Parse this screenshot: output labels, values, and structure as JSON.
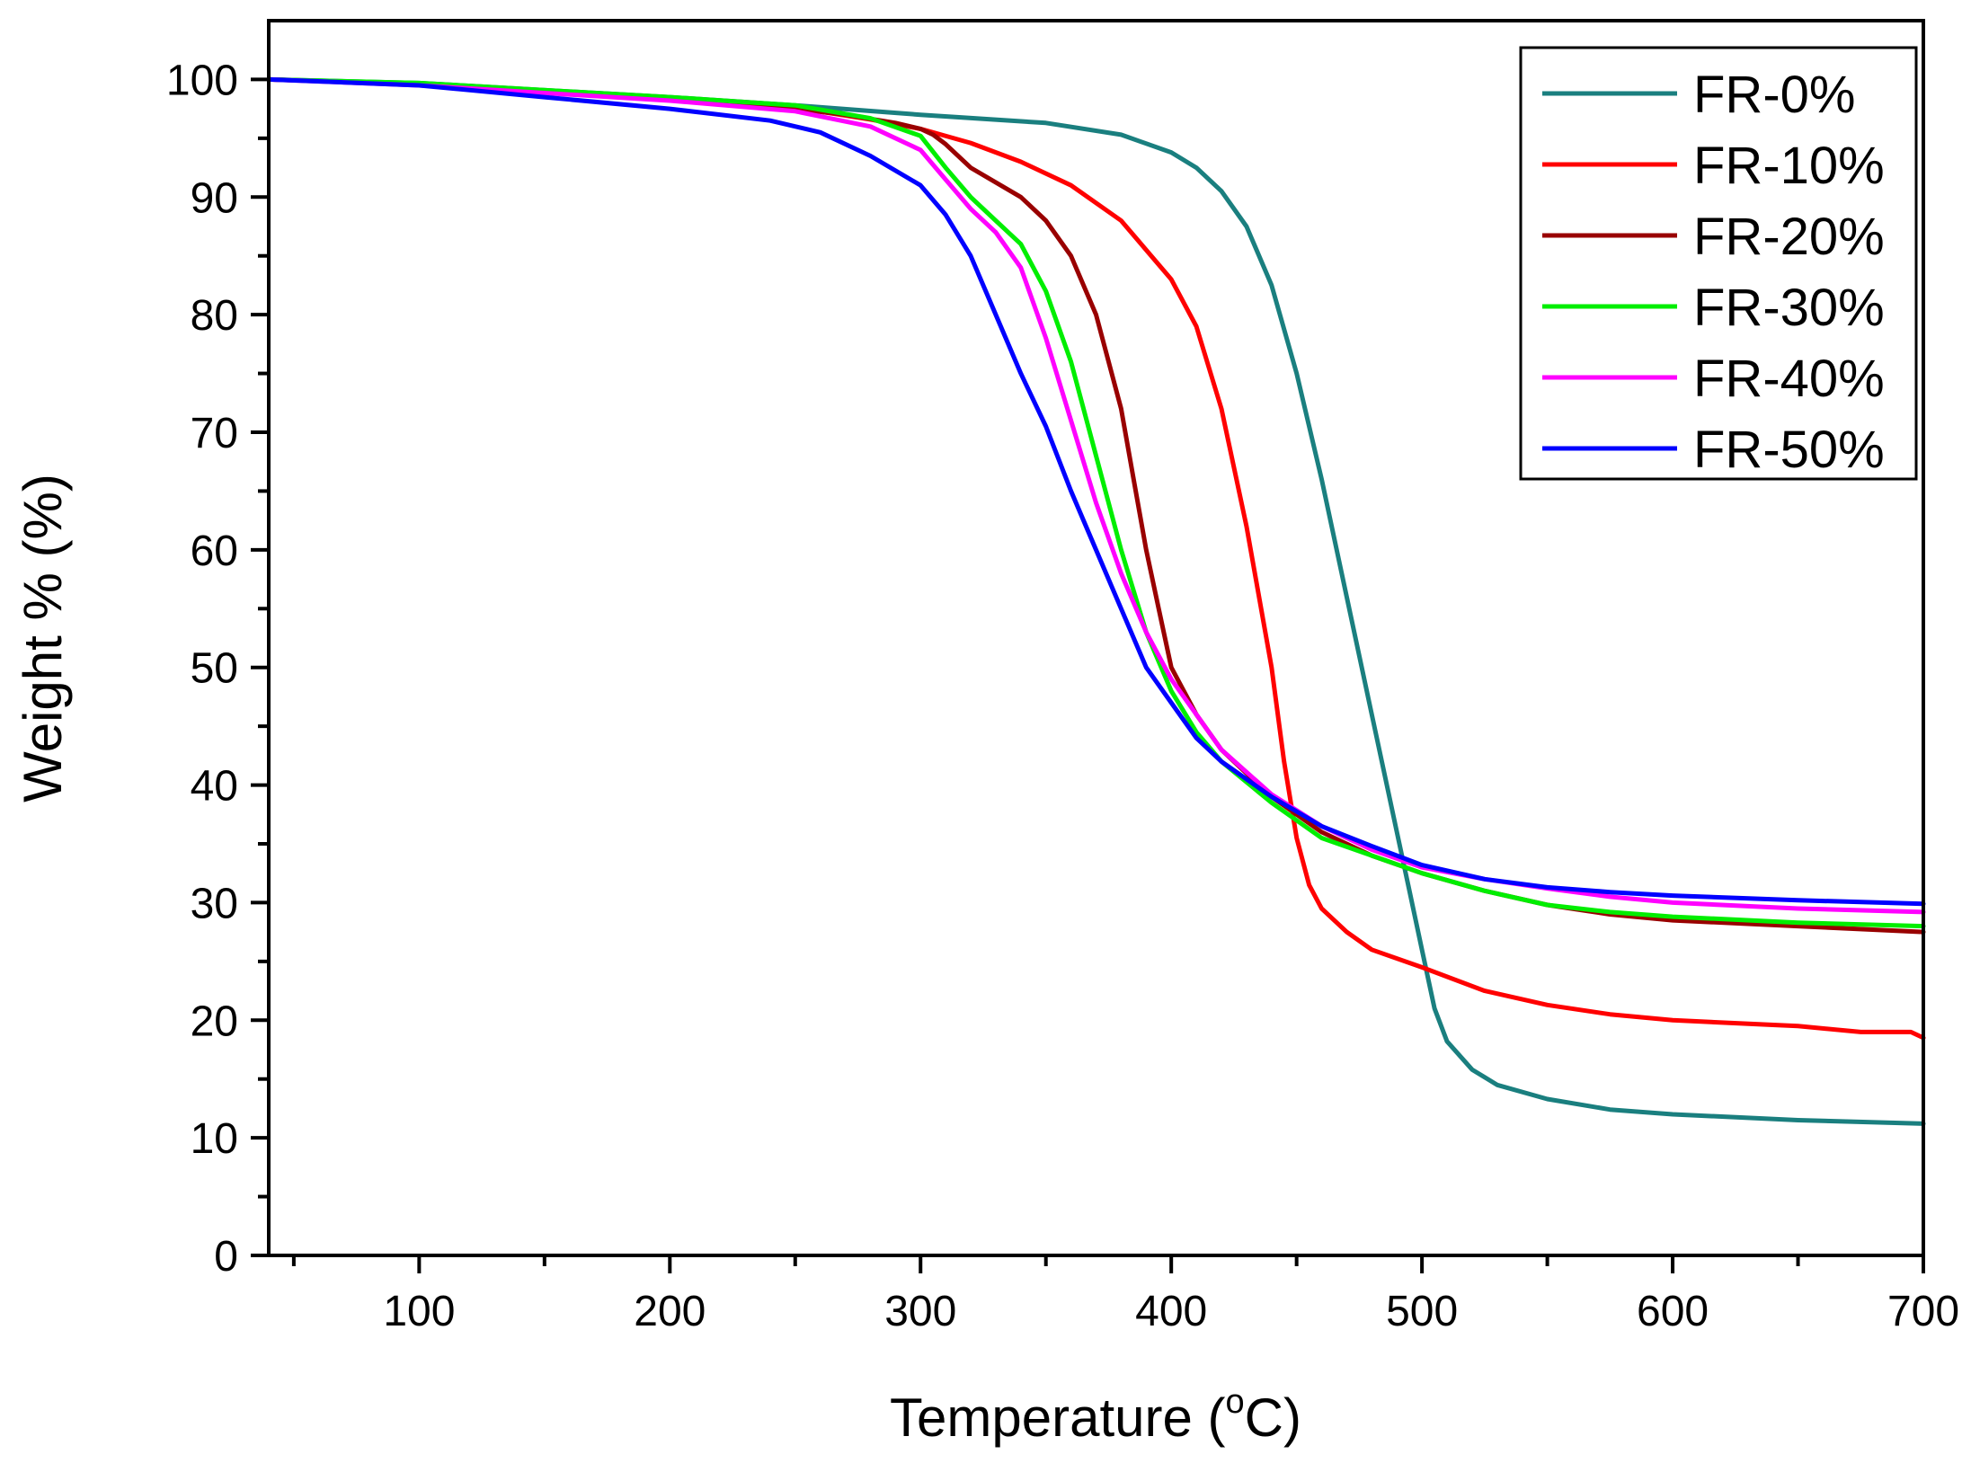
{
  "chart_data": {
    "type": "line",
    "title": "",
    "xlabel": "Temperature (°C)",
    "xlabel_main": "Temperature (",
    "xlabel_sup": "o",
    "xlabel_end": "C)",
    "ylabel": "Weight % (%)",
    "xlim": [
      40,
      700
    ],
    "ylim": [
      0,
      105
    ],
    "x_ticks": [
      100,
      200,
      300,
      400,
      500,
      600,
      700
    ],
    "y_ticks": [
      0,
      10,
      20,
      30,
      40,
      50,
      60,
      70,
      80,
      90,
      100
    ],
    "grid": false,
    "legend_position": "top-right",
    "series": [
      {
        "name": "FR-0%",
        "color": "#1a7f7f",
        "points": [
          [
            40,
            100
          ],
          [
            100,
            99.7
          ],
          [
            200,
            98.5
          ],
          [
            250,
            97.8
          ],
          [
            300,
            97
          ],
          [
            350,
            96.3
          ],
          [
            380,
            95.3
          ],
          [
            400,
            93.8
          ],
          [
            410,
            92.5
          ],
          [
            420,
            90.5
          ],
          [
            430,
            87.5
          ],
          [
            440,
            82.5
          ],
          [
            450,
            75
          ],
          [
            460,
            66
          ],
          [
            470,
            56
          ],
          [
            480,
            46
          ],
          [
            490,
            36
          ],
          [
            495,
            31
          ],
          [
            500,
            26
          ],
          [
            505,
            21
          ],
          [
            510,
            18.2
          ],
          [
            520,
            15.8
          ],
          [
            530,
            14.5
          ],
          [
            550,
            13.3
          ],
          [
            575,
            12.4
          ],
          [
            600,
            12
          ],
          [
            650,
            11.5
          ],
          [
            700,
            11.2
          ]
        ]
      },
      {
        "name": "FR-10%",
        "color": "#ff0000",
        "points": [
          [
            40,
            100
          ],
          [
            100,
            99.6
          ],
          [
            200,
            98.3
          ],
          [
            250,
            97.6
          ],
          [
            280,
            96.6
          ],
          [
            300,
            95.8
          ],
          [
            320,
            94.6
          ],
          [
            340,
            93
          ],
          [
            360,
            91
          ],
          [
            380,
            88
          ],
          [
            400,
            83
          ],
          [
            410,
            79
          ],
          [
            420,
            72
          ],
          [
            430,
            62
          ],
          [
            440,
            50
          ],
          [
            445,
            42
          ],
          [
            450,
            35.5
          ],
          [
            455,
            31.5
          ],
          [
            460,
            29.5
          ],
          [
            470,
            27.5
          ],
          [
            480,
            26
          ],
          [
            500,
            24.5
          ],
          [
            525,
            22.5
          ],
          [
            550,
            21.3
          ],
          [
            575,
            20.5
          ],
          [
            600,
            20
          ],
          [
            650,
            19.5
          ],
          [
            675,
            19
          ],
          [
            695,
            19
          ],
          [
            700,
            18.5
          ]
        ]
      },
      {
        "name": "FR-20%",
        "color": "#990000",
        "points": [
          [
            40,
            100
          ],
          [
            100,
            99.6
          ],
          [
            200,
            98.3
          ],
          [
            250,
            97.5
          ],
          [
            270,
            97
          ],
          [
            290,
            96.3
          ],
          [
            300,
            95.8
          ],
          [
            305,
            95.3
          ],
          [
            310,
            94.5
          ],
          [
            320,
            92.5
          ],
          [
            340,
            90
          ],
          [
            350,
            88
          ],
          [
            360,
            85
          ],
          [
            370,
            80
          ],
          [
            380,
            72
          ],
          [
            385,
            66
          ],
          [
            390,
            60
          ],
          [
            395,
            55
          ],
          [
            400,
            50
          ],
          [
            410,
            46
          ],
          [
            420,
            43
          ],
          [
            440,
            39
          ],
          [
            460,
            36
          ],
          [
            480,
            34
          ],
          [
            500,
            32.5
          ],
          [
            525,
            31
          ],
          [
            550,
            29.8
          ],
          [
            575,
            29
          ],
          [
            600,
            28.5
          ],
          [
            650,
            28
          ],
          [
            700,
            27.5
          ]
        ]
      },
      {
        "name": "FR-30%",
        "color": "#00ee00",
        "points": [
          [
            40,
            100
          ],
          [
            100,
            99.7
          ],
          [
            200,
            98.5
          ],
          [
            250,
            97.8
          ],
          [
            280,
            96.7
          ],
          [
            300,
            95.2
          ],
          [
            310,
            92.5
          ],
          [
            320,
            90
          ],
          [
            330,
            88
          ],
          [
            340,
            86
          ],
          [
            350,
            82
          ],
          [
            360,
            76
          ],
          [
            370,
            68
          ],
          [
            380,
            60
          ],
          [
            390,
            53
          ],
          [
            400,
            48
          ],
          [
            410,
            44.5
          ],
          [
            420,
            42
          ],
          [
            440,
            38.5
          ],
          [
            460,
            35.5
          ],
          [
            480,
            34
          ],
          [
            500,
            32.5
          ],
          [
            525,
            31
          ],
          [
            550,
            29.8
          ],
          [
            575,
            29.2
          ],
          [
            600,
            28.8
          ],
          [
            650,
            28.3
          ],
          [
            700,
            28
          ]
        ]
      },
      {
        "name": "FR-40%",
        "color": "#ff00ff",
        "points": [
          [
            40,
            100
          ],
          [
            100,
            99.5
          ],
          [
            200,
            98.2
          ],
          [
            250,
            97.3
          ],
          [
            280,
            96
          ],
          [
            300,
            94
          ],
          [
            310,
            91.5
          ],
          [
            320,
            89
          ],
          [
            330,
            87
          ],
          [
            340,
            84
          ],
          [
            350,
            78
          ],
          [
            360,
            71
          ],
          [
            370,
            64
          ],
          [
            380,
            58
          ],
          [
            390,
            53
          ],
          [
            400,
            49
          ],
          [
            410,
            46
          ],
          [
            420,
            43
          ],
          [
            440,
            39.2
          ],
          [
            460,
            36.5
          ],
          [
            480,
            34.5
          ],
          [
            500,
            33
          ],
          [
            525,
            32
          ],
          [
            550,
            31.2
          ],
          [
            575,
            30.5
          ],
          [
            600,
            30
          ],
          [
            650,
            29.5
          ],
          [
            700,
            29.2
          ]
        ]
      },
      {
        "name": "FR-50%",
        "color": "#0000ff",
        "points": [
          [
            40,
            100
          ],
          [
            100,
            99.5
          ],
          [
            150,
            98.5
          ],
          [
            200,
            97.5
          ],
          [
            240,
            96.5
          ],
          [
            260,
            95.5
          ],
          [
            280,
            93.5
          ],
          [
            300,
            91
          ],
          [
            310,
            88.5
          ],
          [
            320,
            85
          ],
          [
            330,
            80
          ],
          [
            340,
            75
          ],
          [
            350,
            70.5
          ],
          [
            360,
            65
          ],
          [
            370,
            60
          ],
          [
            380,
            55
          ],
          [
            390,
            50
          ],
          [
            400,
            47
          ],
          [
            410,
            44
          ],
          [
            420,
            42
          ],
          [
            440,
            39
          ],
          [
            460,
            36.5
          ],
          [
            480,
            34.8
          ],
          [
            500,
            33.2
          ],
          [
            525,
            32
          ],
          [
            550,
            31.3
          ],
          [
            575,
            30.9
          ],
          [
            600,
            30.6
          ],
          [
            650,
            30.2
          ],
          [
            700,
            29.9
          ]
        ]
      }
    ]
  }
}
